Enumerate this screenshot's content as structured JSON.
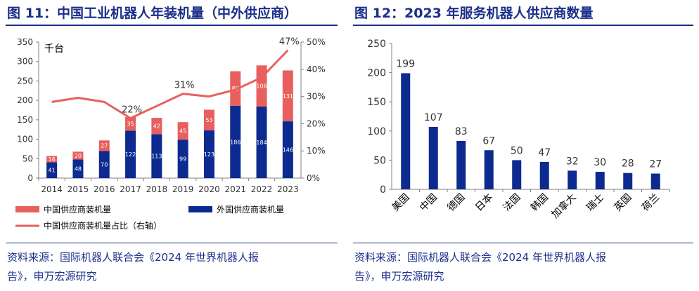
{
  "figure_left": {
    "title": "图 11：中国工业机器人年装机量（中外供应商）",
    "source_line1": "资料来源：国际机器人联合会《2024 年世界机器人报",
    "source_line2": "告》，申万宏源研究"
  },
  "figure_right": {
    "title": "图 12：2023 年服务机器人供应商数量",
    "source_line1": "资料来源：国际机器人联合会《2024 年世界机器人报",
    "source_line2": "告》，申万宏源研究"
  },
  "colors": {
    "title": "#1b2f8a",
    "domestic": "#e8605d",
    "foreign": "#0c2a8f",
    "ratio_line": "#e8605d",
    "bar_right": "#0c2a8f",
    "axis": "#808080",
    "label_dark": "#333333"
  },
  "chart_data": [
    {
      "type": "bar",
      "stacked": true,
      "unit_label": "千台",
      "categories": [
        "2014",
        "2015",
        "2016",
        "2017",
        "2018",
        "2019",
        "2020",
        "2021",
        "2022",
        "2023"
      ],
      "series": [
        {
          "name": "外国供应商装机量",
          "values": [
            41,
            48,
            70,
            122,
            113,
            99,
            123,
            186,
            184,
            146
          ]
        },
        {
          "name": "中国供应商装机量",
          "values": [
            16,
            20,
            27,
            35,
            42,
            45,
            53,
            89,
            106,
            131
          ]
        }
      ],
      "line_series": {
        "name": "中国供应商装机量占比（右轴）",
        "values": [
          28,
          29.5,
          28,
          22,
          26.5,
          31,
          30,
          32.5,
          37,
          47
        ],
        "labeled": [
          {
            "index": 3,
            "text": "22%"
          },
          {
            "index": 5,
            "text": "31%"
          },
          {
            "index": 9,
            "text": "47%"
          }
        ]
      },
      "ylim": [
        0,
        350
      ],
      "yticks": [
        "0",
        "50",
        "100",
        "150",
        "200",
        "250",
        "300",
        "350"
      ],
      "y2lim": [
        0,
        50
      ],
      "y2ticks": [
        "0%",
        "10%",
        "20%",
        "30%",
        "40%",
        "50%"
      ],
      "legend": [
        {
          "label": "中国供应商装机量",
          "kind": "bar",
          "color_key": "domestic"
        },
        {
          "label": "外国供应商装机量",
          "kind": "bar",
          "color_key": "foreign"
        },
        {
          "label": "中国供应商装机量占比（右轴）",
          "kind": "line",
          "color_key": "ratio_line"
        }
      ],
      "legend_position": "bottom"
    },
    {
      "type": "bar",
      "categories": [
        "美国",
        "中国",
        "德国",
        "日本",
        "法国",
        "韩国",
        "加拿大",
        "瑞士",
        "英国",
        "荷兰"
      ],
      "values": [
        199,
        107,
        83,
        67,
        50,
        47,
        32,
        30,
        28,
        27
      ],
      "ylim": [
        0,
        250
      ],
      "yticks": [
        "0",
        "50",
        "100",
        "150",
        "200",
        "250"
      ]
    }
  ]
}
